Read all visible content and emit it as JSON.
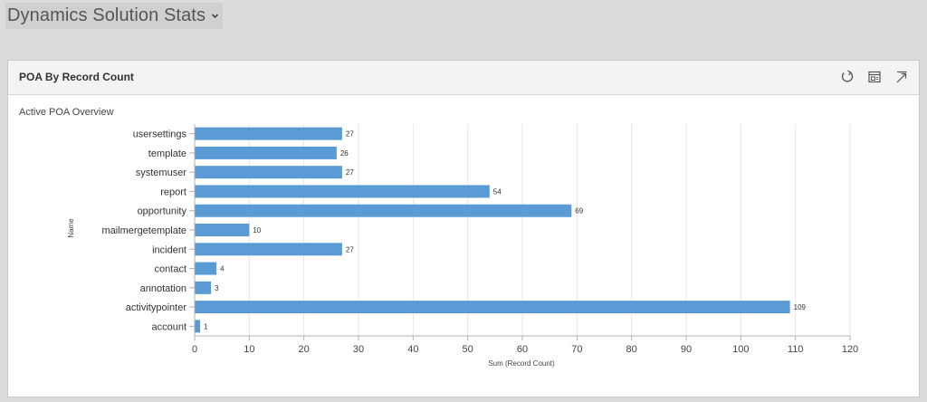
{
  "dashboard": {
    "title": "Dynamics Solution Stats",
    "chevron_icon": "chevron-down-icon"
  },
  "panel": {
    "title": "POA By Record Count",
    "tools": [
      {
        "name": "refresh-icon"
      },
      {
        "name": "view-records-icon"
      },
      {
        "name": "expand-chart-icon"
      }
    ]
  },
  "chart_data": {
    "type": "bar",
    "orientation": "horizontal",
    "title": "Active POA Overview",
    "xlabel": "Sum (Record Count)",
    "ylabel": "Name",
    "xlim": [
      0,
      120
    ],
    "xticks": [
      0,
      10,
      20,
      30,
      40,
      50,
      60,
      70,
      80,
      90,
      100,
      110,
      120
    ],
    "categories": [
      "usersettings",
      "template",
      "systemuser",
      "report",
      "opportunity",
      "mailmergetemplate",
      "incident",
      "contact",
      "annotation",
      "activitypointer",
      "account"
    ],
    "values": [
      27,
      26,
      27,
      54,
      69,
      10,
      27,
      4,
      3,
      109,
      1
    ],
    "bar_color": "#5b9bd5",
    "grid": "vertical"
  }
}
